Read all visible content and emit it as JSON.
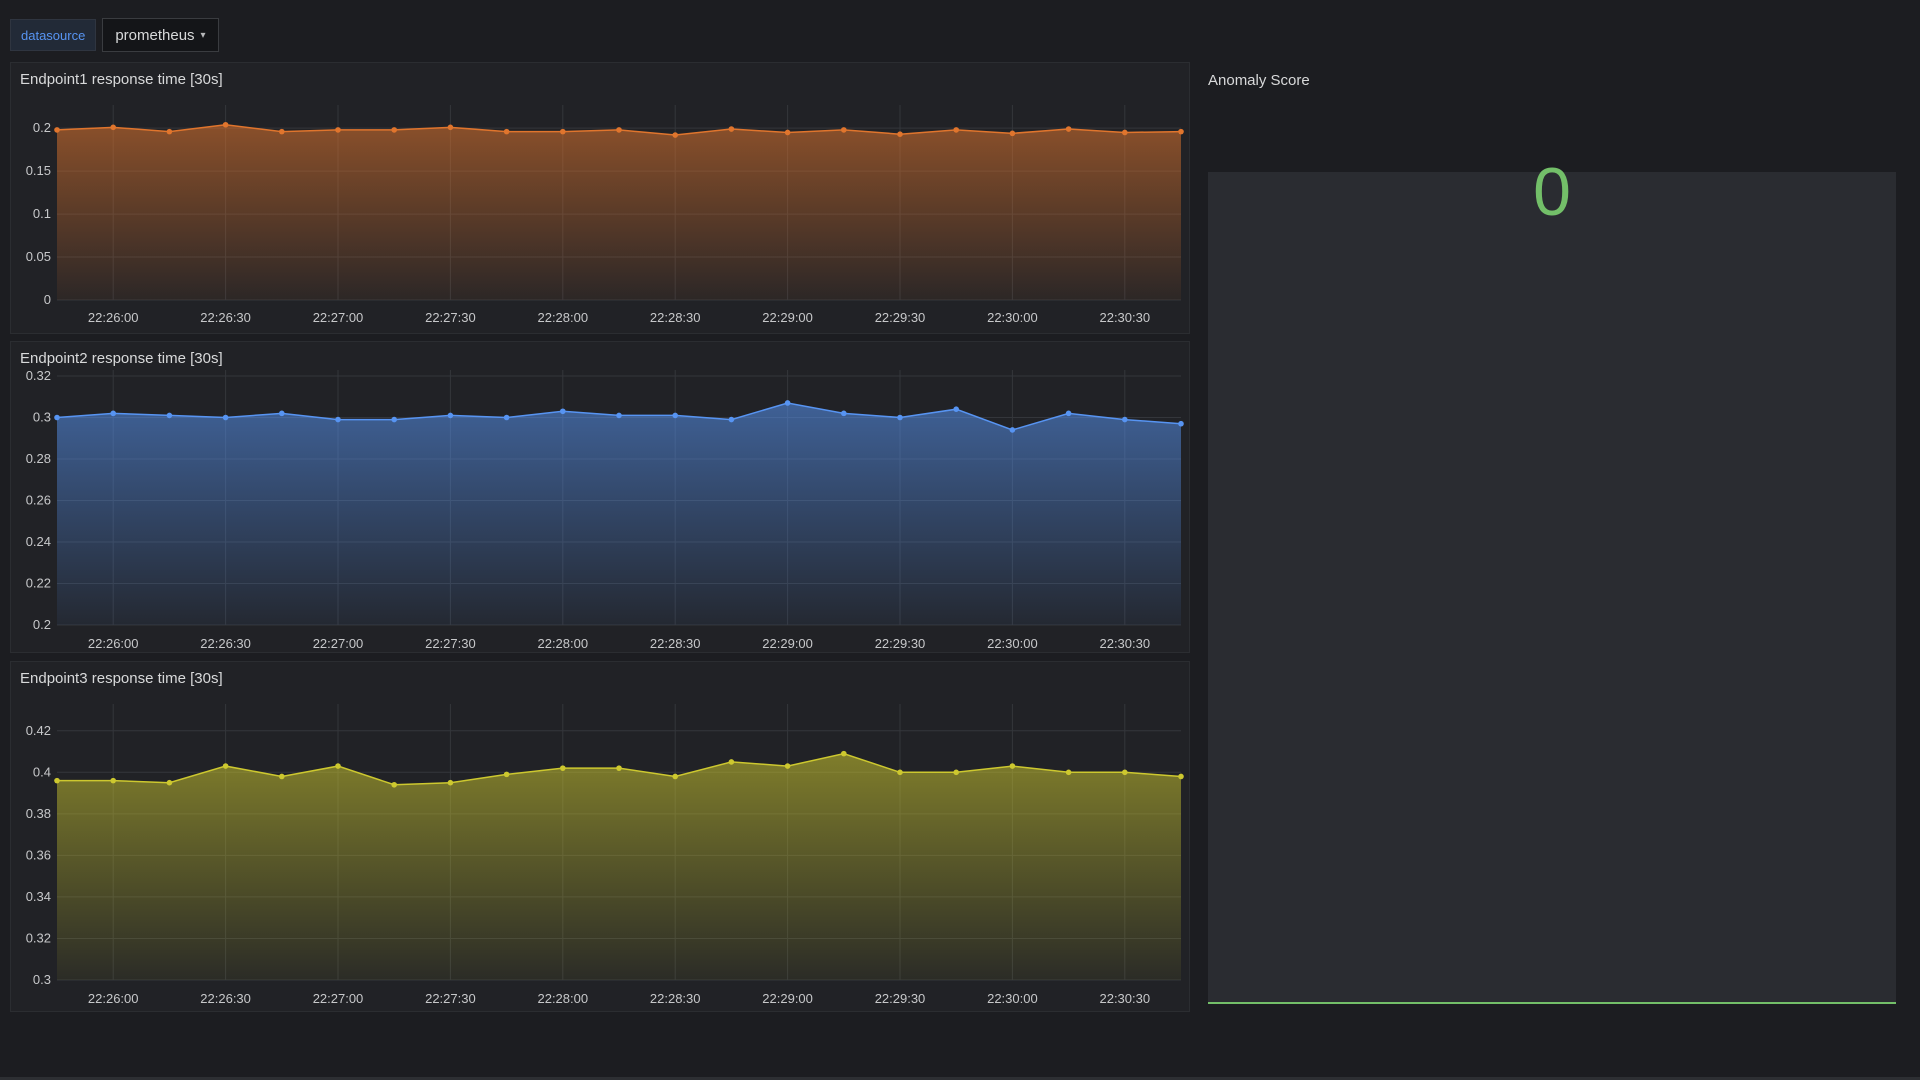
{
  "variables": {
    "label": "datasource",
    "value": "prometheus",
    "caret_icon": "chevron-down-icon"
  },
  "panels": [
    {
      "title": "Endpoint1 response time [30s]"
    },
    {
      "title": "Endpoint2 response time [30s]"
    },
    {
      "title": "Endpoint3 response time [30s]"
    }
  ],
  "stat": {
    "title": "Anomaly Score",
    "value": "0",
    "color": "#73bf69"
  },
  "chart_data": [
    {
      "type": "line",
      "title": "Endpoint1 response time [30s]",
      "x": [
        "22:25:45",
        "22:26:00",
        "22:26:15",
        "22:26:30",
        "22:26:45",
        "22:27:00",
        "22:27:15",
        "22:27:30",
        "22:27:45",
        "22:28:00",
        "22:28:15",
        "22:28:30",
        "22:28:45",
        "22:29:00",
        "22:29:15",
        "22:29:30",
        "22:29:45",
        "22:30:00",
        "22:30:15",
        "22:30:30",
        "22:30:45"
      ],
      "xticks": [
        "22:26:00",
        "22:26:30",
        "22:27:00",
        "22:27:30",
        "22:28:00",
        "22:28:30",
        "22:29:00",
        "22:29:30",
        "22:30:00",
        "22:30:30"
      ],
      "series": [
        {
          "color": "#e0752d",
          "values": [
            0.198,
            0.201,
            0.196,
            0.204,
            0.196,
            0.198,
            0.198,
            0.201,
            0.196,
            0.196,
            0.198,
            0.192,
            0.199,
            0.195,
            0.198,
            0.193,
            0.198,
            0.194,
            0.199,
            0.195,
            0.196
          ]
        }
      ],
      "ylim": [
        0,
        0.22
      ],
      "yticks": [
        "0",
        "0.05",
        "0.1",
        "0.15",
        "0.2"
      ],
      "grid": true
    },
    {
      "type": "line",
      "title": "Endpoint2 response time [30s]",
      "x": [
        "22:25:45",
        "22:26:00",
        "22:26:15",
        "22:26:30",
        "22:26:45",
        "22:27:00",
        "22:27:15",
        "22:27:30",
        "22:27:45",
        "22:28:00",
        "22:28:15",
        "22:28:30",
        "22:28:45",
        "22:29:00",
        "22:29:15",
        "22:29:30",
        "22:29:45",
        "22:30:00",
        "22:30:15",
        "22:30:30",
        "22:30:45"
      ],
      "xticks": [
        "22:26:00",
        "22:26:30",
        "22:27:00",
        "22:27:30",
        "22:28:00",
        "22:28:30",
        "22:29:00",
        "22:29:30",
        "22:30:00",
        "22:30:30"
      ],
      "series": [
        {
          "color": "#5794f2",
          "values": [
            0.3,
            0.302,
            0.301,
            0.3,
            0.302,
            0.299,
            0.299,
            0.301,
            0.3,
            0.303,
            0.301,
            0.301,
            0.299,
            0.307,
            0.302,
            0.3,
            0.304,
            0.294,
            0.302,
            0.299,
            0.297
          ]
        }
      ],
      "ylim": [
        0.2,
        0.32
      ],
      "yticks": [
        "0.2",
        "0.22",
        "0.24",
        "0.26",
        "0.28",
        "0.3",
        "0.32"
      ],
      "grid": true
    },
    {
      "type": "line",
      "title": "Endpoint3 response time [30s]",
      "x": [
        "22:25:45",
        "22:26:00",
        "22:26:15",
        "22:26:30",
        "22:26:45",
        "22:27:00",
        "22:27:15",
        "22:27:30",
        "22:27:45",
        "22:28:00",
        "22:28:15",
        "22:28:30",
        "22:28:45",
        "22:29:00",
        "22:29:15",
        "22:29:30",
        "22:29:45",
        "22:30:00",
        "22:30:15",
        "22:30:30",
        "22:30:45"
      ],
      "xticks": [
        "22:26:00",
        "22:26:30",
        "22:27:00",
        "22:27:30",
        "22:28:00",
        "22:28:30",
        "22:29:00",
        "22:29:30",
        "22:30:00",
        "22:30:30"
      ],
      "series": [
        {
          "color": "#cdc82f",
          "values": [
            0.396,
            0.396,
            0.395,
            0.403,
            0.398,
            0.403,
            0.394,
            0.395,
            0.399,
            0.402,
            0.402,
            0.398,
            0.405,
            0.403,
            0.409,
            0.4,
            0.4,
            0.403,
            0.4,
            0.4,
            0.398
          ]
        }
      ],
      "ylim": [
        0.3,
        0.43
      ],
      "yticks": [
        "0.3",
        "0.32",
        "0.34",
        "0.36",
        "0.38",
        "0.4",
        "0.42"
      ],
      "grid": true
    }
  ]
}
